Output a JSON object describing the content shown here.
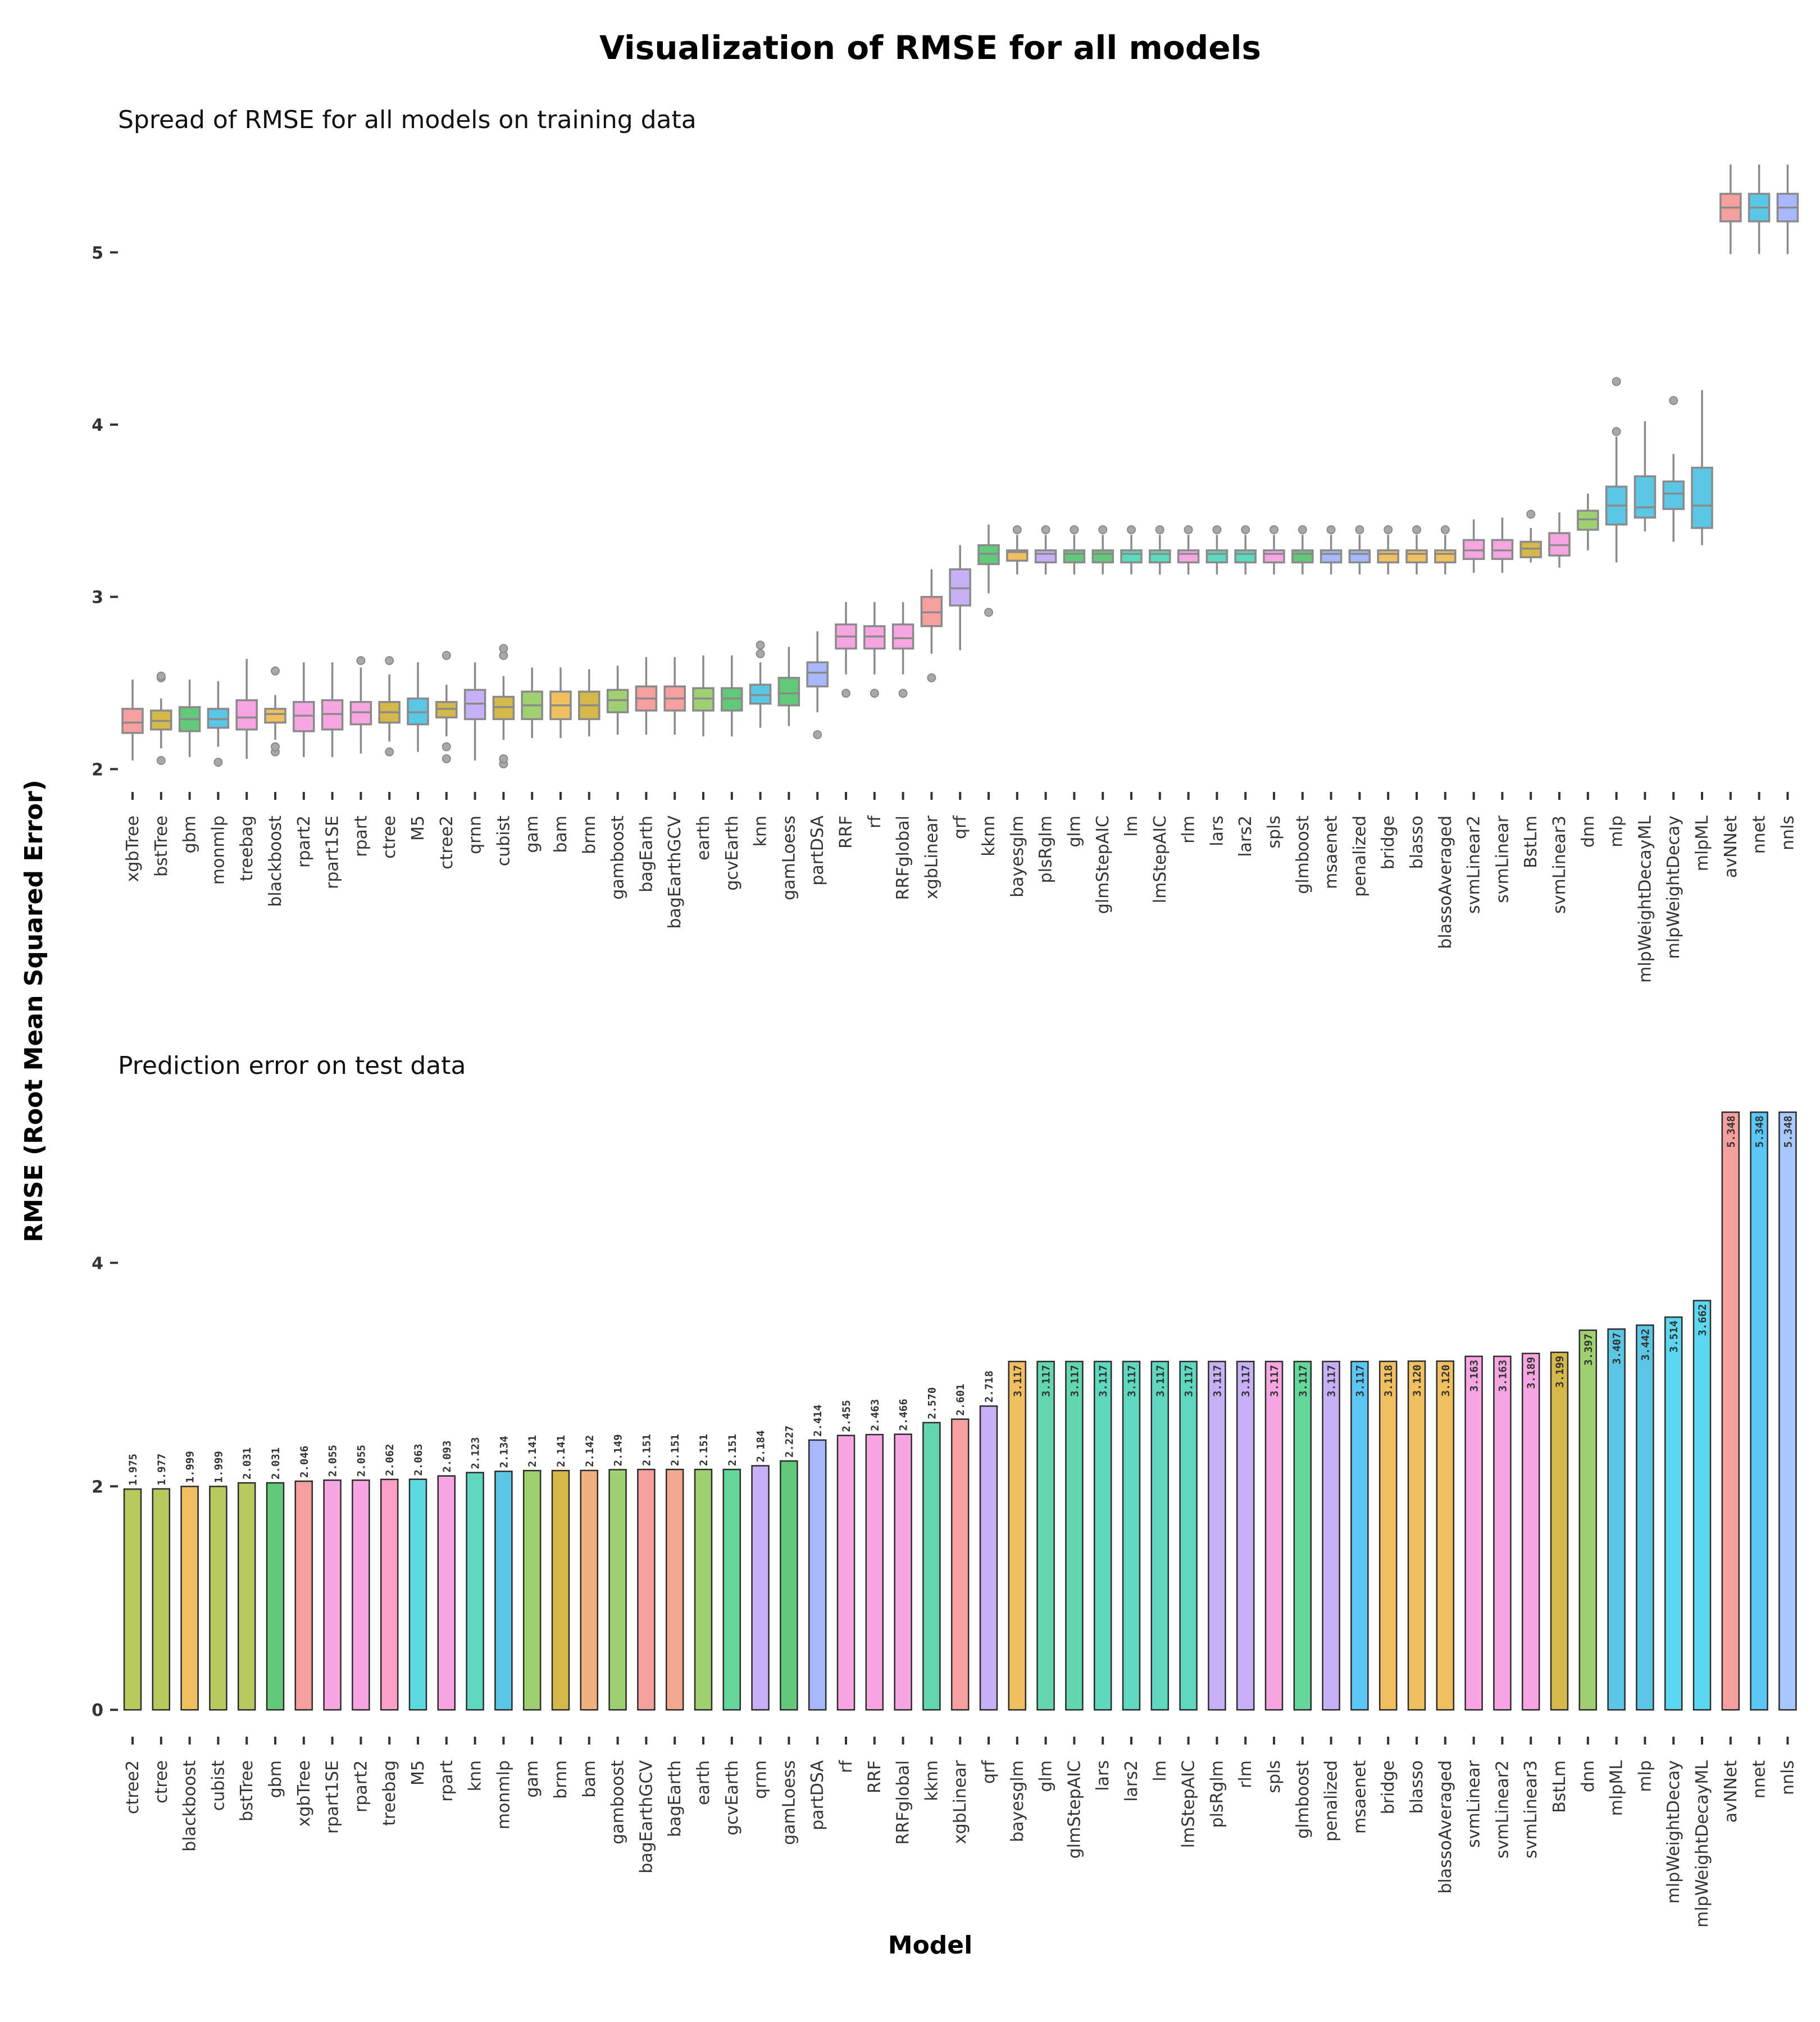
{
  "title": "Visualization of RMSE for all models",
  "ylabel": "RMSE (Root Mean Squared Error)",
  "xlabel": "Model",
  "colors": [
    "#f59f9f",
    "#d4b84a",
    "#63c97a",
    "#5bc7e6",
    "#a7b8ff",
    "#f7a6e2",
    "#f0c060",
    "#a0d070",
    "#5fd8c0",
    "#c8b0f7",
    "#e8b0a0",
    "#ffa0c8"
  ],
  "chart_data": [
    {
      "type": "box",
      "subtitle": "Spread of RMSE for all models on training data",
      "ylim": [
        1.9,
        5.65
      ],
      "yticks": [
        2,
        3,
        4,
        5
      ],
      "grid": false,
      "categories": [
        "xgbTree",
        "bstTree",
        "gbm",
        "monmlp",
        "treebag",
        "blackboost",
        "rpart2",
        "rpart1SE",
        "rpart",
        "ctree",
        "M5",
        "ctree2",
        "qrnn",
        "cubist",
        "gam",
        "bam",
        "brnn",
        "gamboost",
        "bagEarth",
        "bagEarthGCV",
        "earth",
        "gcvEarth",
        "knn",
        "gamLoess",
        "partDSA",
        "RRF",
        "rf",
        "RRFglobal",
        "xgbLinear",
        "qrf",
        "kknn",
        "bayesglm",
        "plsRglm",
        "glm",
        "glmStepAIC",
        "lm",
        "lmStepAIC",
        "rlm",
        "lars",
        "lars2",
        "spls",
        "glmboost",
        "msaenet",
        "penalized",
        "bridge",
        "blasso",
        "blassoAveraged",
        "svmLinear2",
        "svmLinear",
        "BstLm",
        "svmLinear3",
        "dnn",
        "mlp",
        "mlpWeightDecayML",
        "mlpWeightDecay",
        "mlpML",
        "avNNet",
        "nnet",
        "nnls"
      ],
      "colors": [
        "#f59f9f",
        "#d4b84a",
        "#63c97a",
        "#5bc7e6",
        "#f7a6e2",
        "#f0c060",
        "#f7a6e2",
        "#f7a6e2",
        "#f7a6e2",
        "#d4b84a",
        "#5bc7e6",
        "#d4b84a",
        "#c8b0f7",
        "#d4b84a",
        "#a0d070",
        "#f0c060",
        "#d4b84a",
        "#a0d070",
        "#f59f9f",
        "#f59f9f",
        "#a0d070",
        "#63c97a",
        "#5bc7e6",
        "#63c97a",
        "#a7b8ff",
        "#f7a6e2",
        "#f7a6e2",
        "#f7a6e2",
        "#f59f9f",
        "#c8b0f7",
        "#63c97a",
        "#f0c060",
        "#c8b0f7",
        "#63c97a",
        "#63c97a",
        "#5fd8c0",
        "#5fd8c0",
        "#f7a6e2",
        "#5fd8c0",
        "#5fd8c0",
        "#f7a6e2",
        "#63c97a",
        "#a7b8ff",
        "#a7b8ff",
        "#f0c060",
        "#f0c060",
        "#f0c060",
        "#f7a6e2",
        "#f7a6e2",
        "#d4b84a",
        "#f7a6e2",
        "#a0d070",
        "#5bc7e6",
        "#5bc7e6",
        "#5bc7e6",
        "#5bc7e6",
        "#f59f9f",
        "#5bc7e6",
        "#a7b8ff"
      ],
      "boxes": [
        {
          "whislo": 2.05,
          "q1": 2.21,
          "med": 2.27,
          "q3": 2.35,
          "whishi": 2.52,
          "fliers": []
        },
        {
          "whislo": 2.12,
          "q1": 2.23,
          "med": 2.28,
          "q3": 2.34,
          "whishi": 2.41,
          "fliers": [
            2.05,
            2.53,
            2.54
          ]
        },
        {
          "whislo": 2.07,
          "q1": 2.22,
          "med": 2.29,
          "q3": 2.36,
          "whishi": 2.52,
          "fliers": []
        },
        {
          "whislo": 2.13,
          "q1": 2.24,
          "med": 2.29,
          "q3": 2.35,
          "whishi": 2.51,
          "fliers": [
            2.04
          ]
        },
        {
          "whislo": 2.06,
          "q1": 2.23,
          "med": 2.3,
          "q3": 2.4,
          "whishi": 2.64,
          "fliers": []
        },
        {
          "whislo": 2.17,
          "q1": 2.27,
          "med": 2.32,
          "q3": 2.35,
          "whishi": 2.43,
          "fliers": [
            2.1,
            2.13,
            2.57
          ]
        },
        {
          "whislo": 2.07,
          "q1": 2.22,
          "med": 2.31,
          "q3": 2.39,
          "whishi": 2.62,
          "fliers": []
        },
        {
          "whislo": 2.07,
          "q1": 2.23,
          "med": 2.32,
          "q3": 2.4,
          "whishi": 2.62,
          "fliers": []
        },
        {
          "whislo": 2.09,
          "q1": 2.26,
          "med": 2.33,
          "q3": 2.39,
          "whishi": 2.59,
          "fliers": [
            2.63
          ]
        },
        {
          "whislo": 2.16,
          "q1": 2.27,
          "med": 2.33,
          "q3": 2.39,
          "whishi": 2.55,
          "fliers": [
            2.1,
            2.63
          ]
        },
        {
          "whislo": 2.1,
          "q1": 2.26,
          "med": 2.33,
          "q3": 2.41,
          "whishi": 2.62,
          "fliers": []
        },
        {
          "whislo": 2.19,
          "q1": 2.3,
          "med": 2.35,
          "q3": 2.39,
          "whishi": 2.49,
          "fliers": [
            2.06,
            2.13,
            2.66
          ]
        },
        {
          "whislo": 2.05,
          "q1": 2.29,
          "med": 2.38,
          "q3": 2.46,
          "whishi": 2.62,
          "fliers": []
        },
        {
          "whislo": 2.17,
          "q1": 2.29,
          "med": 2.36,
          "q3": 2.42,
          "whishi": 2.54,
          "fliers": [
            2.03,
            2.06,
            2.66,
            2.7
          ]
        },
        {
          "whislo": 2.18,
          "q1": 2.29,
          "med": 2.37,
          "q3": 2.45,
          "whishi": 2.59,
          "fliers": []
        },
        {
          "whislo": 2.18,
          "q1": 2.29,
          "med": 2.37,
          "q3": 2.45,
          "whishi": 2.59,
          "fliers": []
        },
        {
          "whislo": 2.19,
          "q1": 2.29,
          "med": 2.37,
          "q3": 2.45,
          "whishi": 2.58,
          "fliers": []
        },
        {
          "whislo": 2.2,
          "q1": 2.33,
          "med": 2.4,
          "q3": 2.46,
          "whishi": 2.6,
          "fliers": []
        },
        {
          "whislo": 2.2,
          "q1": 2.34,
          "med": 2.41,
          "q3": 2.48,
          "whishi": 2.65,
          "fliers": []
        },
        {
          "whislo": 2.2,
          "q1": 2.34,
          "med": 2.41,
          "q3": 2.48,
          "whishi": 2.65,
          "fliers": []
        },
        {
          "whislo": 2.19,
          "q1": 2.34,
          "med": 2.41,
          "q3": 2.47,
          "whishi": 2.66,
          "fliers": []
        },
        {
          "whislo": 2.19,
          "q1": 2.34,
          "med": 2.41,
          "q3": 2.47,
          "whishi": 2.66,
          "fliers": []
        },
        {
          "whislo": 2.24,
          "q1": 2.38,
          "med": 2.43,
          "q3": 2.49,
          "whishi": 2.62,
          "fliers": [
            2.67,
            2.72
          ]
        },
        {
          "whislo": 2.25,
          "q1": 2.37,
          "med": 2.44,
          "q3": 2.53,
          "whishi": 2.71,
          "fliers": []
        },
        {
          "whislo": 2.33,
          "q1": 2.48,
          "med": 2.56,
          "q3": 2.62,
          "whishi": 2.8,
          "fliers": [
            2.2
          ]
        },
        {
          "whislo": 2.55,
          "q1": 2.7,
          "med": 2.77,
          "q3": 2.84,
          "whishi": 2.97,
          "fliers": [
            2.44
          ]
        },
        {
          "whislo": 2.55,
          "q1": 2.7,
          "med": 2.77,
          "q3": 2.83,
          "whishi": 2.97,
          "fliers": [
            2.44
          ]
        },
        {
          "whislo": 2.55,
          "q1": 2.7,
          "med": 2.76,
          "q3": 2.84,
          "whishi": 2.97,
          "fliers": [
            2.44
          ]
        },
        {
          "whislo": 2.67,
          "q1": 2.83,
          "med": 2.91,
          "q3": 3.0,
          "whishi": 3.16,
          "fliers": [
            2.53
          ]
        },
        {
          "whislo": 2.69,
          "q1": 2.95,
          "med": 3.05,
          "q3": 3.16,
          "whishi": 3.3,
          "fliers": []
        },
        {
          "whislo": 3.02,
          "q1": 3.19,
          "med": 3.25,
          "q3": 3.3,
          "whishi": 3.42,
          "fliers": [
            2.91
          ]
        },
        {
          "whislo": 3.13,
          "q1": 3.21,
          "med": 3.26,
          "q3": 3.27,
          "whishi": 3.36,
          "fliers": [
            3.39
          ]
        },
        {
          "whislo": 3.13,
          "q1": 3.2,
          "med": 3.25,
          "q3": 3.27,
          "whishi": 3.36,
          "fliers": [
            3.39
          ]
        },
        {
          "whislo": 3.13,
          "q1": 3.2,
          "med": 3.25,
          "q3": 3.27,
          "whishi": 3.36,
          "fliers": [
            3.39
          ]
        },
        {
          "whislo": 3.13,
          "q1": 3.2,
          "med": 3.25,
          "q3": 3.27,
          "whishi": 3.36,
          "fliers": [
            3.39
          ]
        },
        {
          "whislo": 3.13,
          "q1": 3.2,
          "med": 3.25,
          "q3": 3.27,
          "whishi": 3.36,
          "fliers": [
            3.39
          ]
        },
        {
          "whislo": 3.13,
          "q1": 3.2,
          "med": 3.25,
          "q3": 3.27,
          "whishi": 3.36,
          "fliers": [
            3.39
          ]
        },
        {
          "whislo": 3.13,
          "q1": 3.2,
          "med": 3.25,
          "q3": 3.27,
          "whishi": 3.36,
          "fliers": [
            3.39
          ]
        },
        {
          "whislo": 3.13,
          "q1": 3.2,
          "med": 3.25,
          "q3": 3.27,
          "whishi": 3.36,
          "fliers": [
            3.39
          ]
        },
        {
          "whislo": 3.13,
          "q1": 3.2,
          "med": 3.25,
          "q3": 3.27,
          "whishi": 3.36,
          "fliers": [
            3.39
          ]
        },
        {
          "whislo": 3.13,
          "q1": 3.2,
          "med": 3.25,
          "q3": 3.27,
          "whishi": 3.36,
          "fliers": [
            3.39
          ]
        },
        {
          "whislo": 3.13,
          "q1": 3.2,
          "med": 3.25,
          "q3": 3.27,
          "whishi": 3.36,
          "fliers": [
            3.39
          ]
        },
        {
          "whislo": 3.13,
          "q1": 3.2,
          "med": 3.25,
          "q3": 3.27,
          "whishi": 3.36,
          "fliers": [
            3.39
          ]
        },
        {
          "whislo": 3.13,
          "q1": 3.2,
          "med": 3.25,
          "q3": 3.27,
          "whishi": 3.36,
          "fliers": [
            3.39
          ]
        },
        {
          "whislo": 3.13,
          "q1": 3.2,
          "med": 3.25,
          "q3": 3.27,
          "whishi": 3.36,
          "fliers": [
            3.39
          ]
        },
        {
          "whislo": 3.13,
          "q1": 3.2,
          "med": 3.25,
          "q3": 3.27,
          "whishi": 3.36,
          "fliers": [
            3.39
          ]
        },
        {
          "whislo": 3.13,
          "q1": 3.2,
          "med": 3.25,
          "q3": 3.27,
          "whishi": 3.36,
          "fliers": [
            3.39
          ]
        },
        {
          "whislo": 3.14,
          "q1": 3.22,
          "med": 3.27,
          "q3": 3.33,
          "whishi": 3.45,
          "fliers": []
        },
        {
          "whislo": 3.14,
          "q1": 3.22,
          "med": 3.27,
          "q3": 3.33,
          "whishi": 3.46,
          "fliers": []
        },
        {
          "whislo": 3.2,
          "q1": 3.23,
          "med": 3.28,
          "q3": 3.32,
          "whishi": 3.4,
          "fliers": [
            3.48
          ]
        },
        {
          "whislo": 3.17,
          "q1": 3.24,
          "med": 3.3,
          "q3": 3.37,
          "whishi": 3.49,
          "fliers": []
        },
        {
          "whislo": 3.27,
          "q1": 3.39,
          "med": 3.45,
          "q3": 3.5,
          "whishi": 3.6,
          "fliers": []
        },
        {
          "whislo": 3.2,
          "q1": 3.42,
          "med": 3.53,
          "q3": 3.64,
          "whishi": 3.93,
          "fliers": [
            3.96,
            4.25
          ]
        },
        {
          "whislo": 3.38,
          "q1": 3.46,
          "med": 3.52,
          "q3": 3.7,
          "whishi": 4.02,
          "fliers": []
        },
        {
          "whislo": 3.32,
          "q1": 3.51,
          "med": 3.6,
          "q3": 3.67,
          "whishi": 3.83,
          "fliers": [
            4.14
          ]
        },
        {
          "whislo": 3.3,
          "q1": 3.4,
          "med": 3.53,
          "q3": 3.75,
          "whishi": 4.2,
          "fliers": []
        },
        {
          "whislo": 4.99,
          "q1": 5.18,
          "med": 5.26,
          "q3": 5.34,
          "whishi": 5.51,
          "fliers": []
        },
        {
          "whislo": 4.99,
          "q1": 5.18,
          "med": 5.26,
          "q3": 5.34,
          "whishi": 5.51,
          "fliers": []
        },
        {
          "whislo": 4.99,
          "q1": 5.18,
          "med": 5.26,
          "q3": 5.34,
          "whishi": 5.51,
          "fliers": []
        }
      ]
    },
    {
      "type": "bar",
      "subtitle": "Prediction error on test data",
      "ylim": [
        -0.2,
        5.6
      ],
      "yticks": [
        0,
        2,
        4
      ],
      "grid": false,
      "categories": [
        "ctree2",
        "ctree",
        "blackboost",
        "cubist",
        "bstTree",
        "gbm",
        "xgbTree",
        "rpart1SE",
        "rpart2",
        "treebag",
        "M5",
        "rpart",
        "knn",
        "monmlp",
        "gam",
        "brnn",
        "bam",
        "gamboost",
        "bagEarthGCV",
        "bagEarth",
        "earth",
        "gcvEarth",
        "qrnn",
        "gamLoess",
        "partDSA",
        "rf",
        "RRF",
        "RRFglobal",
        "kknn",
        "xgbLinear",
        "qrf",
        "bayesglm",
        "glm",
        "glmStepAIC",
        "lars",
        "lars2",
        "lm",
        "lmStepAIC",
        "plsRglm",
        "rlm",
        "spls",
        "glmboost",
        "penalized",
        "msaenet",
        "bridge",
        "blasso",
        "blassoAveraged",
        "svmLinear",
        "svmLinear2",
        "svmLinear3",
        "BstLm",
        "dnn",
        "mlpML",
        "mlp",
        "mlpWeightDecay",
        "mlpWeightDecayML",
        "avNNet",
        "nnet",
        "nnls"
      ],
      "values": [
        1.975,
        1.977,
        1.999,
        1.999,
        2.031,
        2.031,
        2.046,
        2.055,
        2.055,
        2.062,
        2.063,
        2.093,
        2.123,
        2.134,
        2.141,
        2.141,
        2.142,
        2.149,
        2.151,
        2.151,
        2.151,
        2.151,
        2.184,
        2.227,
        2.414,
        2.455,
        2.463,
        2.466,
        2.57,
        2.601,
        2.718,
        3.117,
        3.117,
        3.117,
        3.117,
        3.117,
        3.117,
        3.117,
        3.117,
        3.117,
        3.117,
        3.117,
        3.117,
        3.117,
        3.118,
        3.12,
        3.12,
        3.163,
        3.163,
        3.189,
        3.199,
        3.397,
        3.407,
        3.442,
        3.514,
        3.662,
        5.348,
        5.348,
        5.348
      ],
      "value_labels": [
        "1.975",
        "1.977",
        "1.999",
        "1.999",
        "2.031",
        "2.031",
        "2.046",
        "2.055",
        "2.055",
        "2.062",
        "2.063",
        "2.093",
        "2.123",
        "2.134",
        "2.141",
        "2.141",
        "2.142",
        "2.149",
        "2.151",
        "2.151",
        "2.151",
        "2.151",
        "2.184",
        "2.227",
        "2.414",
        "2.455",
        "2.463",
        "2.466",
        "2.570",
        "2.601",
        "2.718",
        "3.117",
        "3.117",
        "3.117",
        "3.117",
        "3.117",
        "3.117",
        "3.117",
        "3.117",
        "3.117",
        "3.117",
        "3.117",
        "3.117",
        "3.117",
        "3.118",
        "3.120",
        "3.120",
        "3.163",
        "3.163",
        "3.189",
        "3.199",
        "3.397",
        "3.407",
        "3.442",
        "3.514",
        "3.662",
        "5.348",
        "5.348",
        "5.348"
      ],
      "colors": [
        "#b8c960",
        "#b8c960",
        "#f0c060",
        "#b8c960",
        "#b8c960",
        "#63c97a",
        "#f59f9f",
        "#f7a6e2",
        "#f7a6e2",
        "#ffa0c8",
        "#5bd8e0",
        "#f7a6e2",
        "#5fd8c0",
        "#5bc7e6",
        "#a0d070",
        "#d4b84a",
        "#f0b080",
        "#a0d070",
        "#f59f9f",
        "#f5a890",
        "#a0d070",
        "#63d89a",
        "#c8b0f7",
        "#63c97a",
        "#a7b8ff",
        "#f7a6e2",
        "#f7a6e2",
        "#f7a6e2",
        "#63d8b0",
        "#f59f9f",
        "#c8b0f7",
        "#f0c060",
        "#63d8b0",
        "#63d8b0",
        "#5fd8c0",
        "#5fd8c0",
        "#5fd8c0",
        "#5fd8c0",
        "#c8b0f7",
        "#c8b0f7",
        "#f7a6e2",
        "#63d89a",
        "#c8b0f7",
        "#5bc7f7",
        "#f0c060",
        "#f0c060",
        "#f0c060",
        "#f7a6e2",
        "#f7a6e2",
        "#f7a6e2",
        "#d4b84a",
        "#a0d070",
        "#5bc7e6",
        "#5bc7e6",
        "#5bd8f0",
        "#5bd8f0",
        "#f59f9f",
        "#5bc7f7",
        "#a7c8ff"
      ]
    }
  ]
}
